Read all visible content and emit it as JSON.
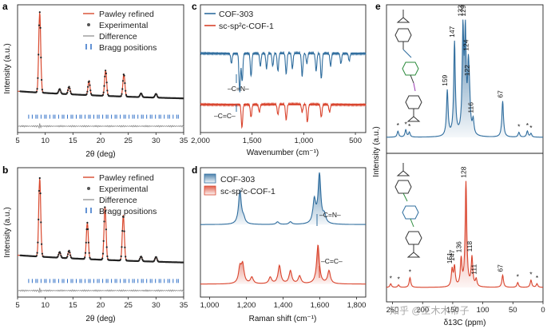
{
  "panels": {
    "a": {
      "label": "a",
      "xlabel": "2θ (deg)",
      "ylabel": "Intensity (a.u.)",
      "xticks": [
        "5",
        "10",
        "15",
        "20",
        "25",
        "30",
        "35"
      ],
      "legend": [
        "Pawley refined",
        "Experimental",
        "Difference",
        "Bragg positions"
      ]
    },
    "b": {
      "label": "b",
      "xlabel": "2θ (deg)",
      "ylabel": "Intensity (a.u.)",
      "xticks": [
        "5",
        "10",
        "15",
        "20",
        "25",
        "30",
        "35"
      ],
      "legend": [
        "Pawley refined",
        "Experimental",
        "Difference",
        "Bragg positions"
      ]
    },
    "c": {
      "label": "c",
      "xlabel": "Wavenumber (cm⁻¹)",
      "ylabel": "",
      "xticks": [
        "2,000",
        "1,500",
        "1,000",
        "500"
      ],
      "legend": [
        "COF-303",
        "sc-sp²c-COF-1"
      ],
      "annotations": [
        "–C=N–",
        "–C=C–"
      ]
    },
    "d": {
      "label": "d",
      "xlabel": "Raman shift (cm⁻¹)",
      "ylabel": "",
      "xticks": [
        "1,000",
        "1,200",
        "1,400",
        "1,600",
        "1,800"
      ],
      "legend": [
        "COF-303",
        "sc-sp²c-COF-1"
      ],
      "annotations": [
        "–C=N–",
        "–C=C–"
      ]
    },
    "e": {
      "label": "e",
      "xlabel": "δ13C (ppm)",
      "ylabel": "Intensity (a.u.)",
      "xticks": [
        "250",
        "200",
        "150",
        "100",
        "50",
        "0"
      ],
      "top_peaks": [
        "159",
        "147",
        "133",
        "129",
        "124",
        "122",
        "116",
        "67"
      ],
      "bottom_peaks": [
        "151",
        "147",
        "136",
        "128",
        "118",
        "111",
        "67"
      ],
      "sidebands": "*"
    }
  },
  "colors": {
    "refined": "#d9492e",
    "experimental": "#222222",
    "difference": "#888888",
    "bragg": "#2f6fc7",
    "cof303": "#2f6d9e",
    "sc": "#d9432c",
    "fill303": "#b9d0e8",
    "fillsc": "#f3c4b6"
  },
  "watermark": "知乎 @王木木帝子",
  "chart_data": [
    {
      "panel": "a",
      "type": "line",
      "title": "",
      "xlabel": "2θ (deg)",
      "ylabel": "Intensity (a.u.)",
      "xlim": [
        5,
        35
      ],
      "ylim": [
        0,
        1
      ],
      "peaks": [
        {
          "x": 9.0,
          "y": 0.85
        },
        {
          "x": 12.6,
          "y": 0.05
        },
        {
          "x": 14.3,
          "y": 0.08
        },
        {
          "x": 17.9,
          "y": 0.15
        },
        {
          "x": 20.9,
          "y": 0.27
        },
        {
          "x": 24.2,
          "y": 0.24
        },
        {
          "x": 27.3,
          "y": 0.04
        },
        {
          "x": 30.0,
          "y": 0.04
        }
      ],
      "baseline": 0.12
    },
    {
      "panel": "b",
      "type": "line",
      "title": "",
      "xlabel": "2θ (deg)",
      "ylabel": "Intensity (a.u.)",
      "xlim": [
        5,
        35
      ],
      "ylim": [
        0,
        1
      ],
      "peaks": [
        {
          "x": 9.0,
          "y": 0.82
        },
        {
          "x": 12.6,
          "y": 0.06
        },
        {
          "x": 14.3,
          "y": 0.08
        },
        {
          "x": 17.6,
          "y": 0.38
        },
        {
          "x": 20.8,
          "y": 0.56
        },
        {
          "x": 24.1,
          "y": 0.48
        },
        {
          "x": 27.3,
          "y": 0.05
        },
        {
          "x": 30.0,
          "y": 0.05
        }
      ],
      "baseline": 0.12
    },
    {
      "panel": "c",
      "type": "line",
      "xlabel": "Wavenumber (cm⁻¹)",
      "xlim": [
        2000,
        400
      ],
      "series": [
        {
          "name": "COF-303",
          "offset": 0.62,
          "dips": [
            [
              1700,
              0.08
            ],
            [
              1620,
              0.3
            ],
            [
              1596,
              0.22
            ],
            [
              1510,
              0.18
            ],
            [
              1420,
              0.1
            ],
            [
              1360,
              0.12
            ],
            [
              1300,
              0.1
            ],
            [
              1250,
              0.14
            ],
            [
              1170,
              0.16
            ],
            [
              1110,
              0.12
            ],
            [
              1015,
              0.18
            ],
            [
              970,
              0.08
            ],
            [
              880,
              0.14
            ],
            [
              830,
              0.2
            ],
            [
              740,
              0.1
            ],
            [
              640,
              0.08
            ],
            [
              560,
              0.06
            ]
          ]
        },
        {
          "name": "sc-sp²c-COF-1",
          "offset": 0.22,
          "dips": [
            [
              1598,
              0.18
            ],
            [
              1510,
              0.1
            ],
            [
              1430,
              0.06
            ],
            [
              1250,
              0.08
            ],
            [
              1170,
              0.12
            ],
            [
              1015,
              0.06
            ],
            [
              965,
              0.14
            ],
            [
              830,
              0.1
            ],
            [
              750,
              0.06
            ]
          ]
        }
      ]
    },
    {
      "panel": "d",
      "type": "line",
      "xlabel": "Raman shift (cm⁻¹)",
      "xlim": [
        950,
        1850
      ],
      "series": [
        {
          "name": "COF-303",
          "offset": 0.56,
          "peaks": [
            [
              1165,
              0.26
            ],
            [
              1185,
              0.04
            ],
            [
              1370,
              0.02
            ],
            [
              1440,
              0.02
            ],
            [
              1570,
              0.18
            ],
            [
              1598,
              0.38
            ],
            [
              1625,
              0.06
            ]
          ]
        },
        {
          "name": "sc-sp²c-COF-1",
          "offset": 0.1,
          "peaks": [
            [
              1165,
              0.12
            ],
            [
              1180,
              0.14
            ],
            [
              1230,
              0.05
            ],
            [
              1330,
              0.05
            ],
            [
              1380,
              0.14
            ],
            [
              1440,
              0.1
            ],
            [
              1490,
              0.06
            ],
            [
              1590,
              0.3
            ],
            [
              1650,
              0.1
            ]
          ]
        }
      ]
    },
    {
      "panel": "e",
      "type": "line",
      "xlabel": "δ13C (ppm)",
      "ylabel": "Intensity (a.u.)",
      "xlim": [
        260,
        0
      ],
      "series": [
        {
          "name": "COF-303 (top)",
          "peaks": [
            [
              241,
              0.05
            ],
            [
              228,
              0.06
            ],
            [
              222,
              0.04
            ],
            [
              159,
              0.38
            ],
            [
              147,
              0.78
            ],
            [
              133,
              0.84
            ],
            [
              129,
              0.8
            ],
            [
              124,
              0.5
            ],
            [
              122,
              0.22
            ],
            [
              116,
              0.12
            ],
            [
              67,
              0.3
            ],
            [
              40,
              0.04
            ],
            [
              26,
              0.05
            ],
            [
              20,
              0.03
            ]
          ]
        },
        {
          "name": "sc-sp²c-COF-1 (bottom)",
          "peaks": [
            [
              253,
              0.03
            ],
            [
              240,
              0.02
            ],
            [
              221,
              0.08
            ],
            [
              151,
              0.14
            ],
            [
              147,
              0.16
            ],
            [
              136,
              0.22
            ],
            [
              128,
              0.86
            ],
            [
              118,
              0.24
            ],
            [
              111,
              0.06
            ],
            [
              67,
              0.1
            ],
            [
              42,
              0.04
            ],
            [
              20,
              0.06
            ],
            [
              10,
              0.03
            ]
          ]
        }
      ]
    }
  ]
}
